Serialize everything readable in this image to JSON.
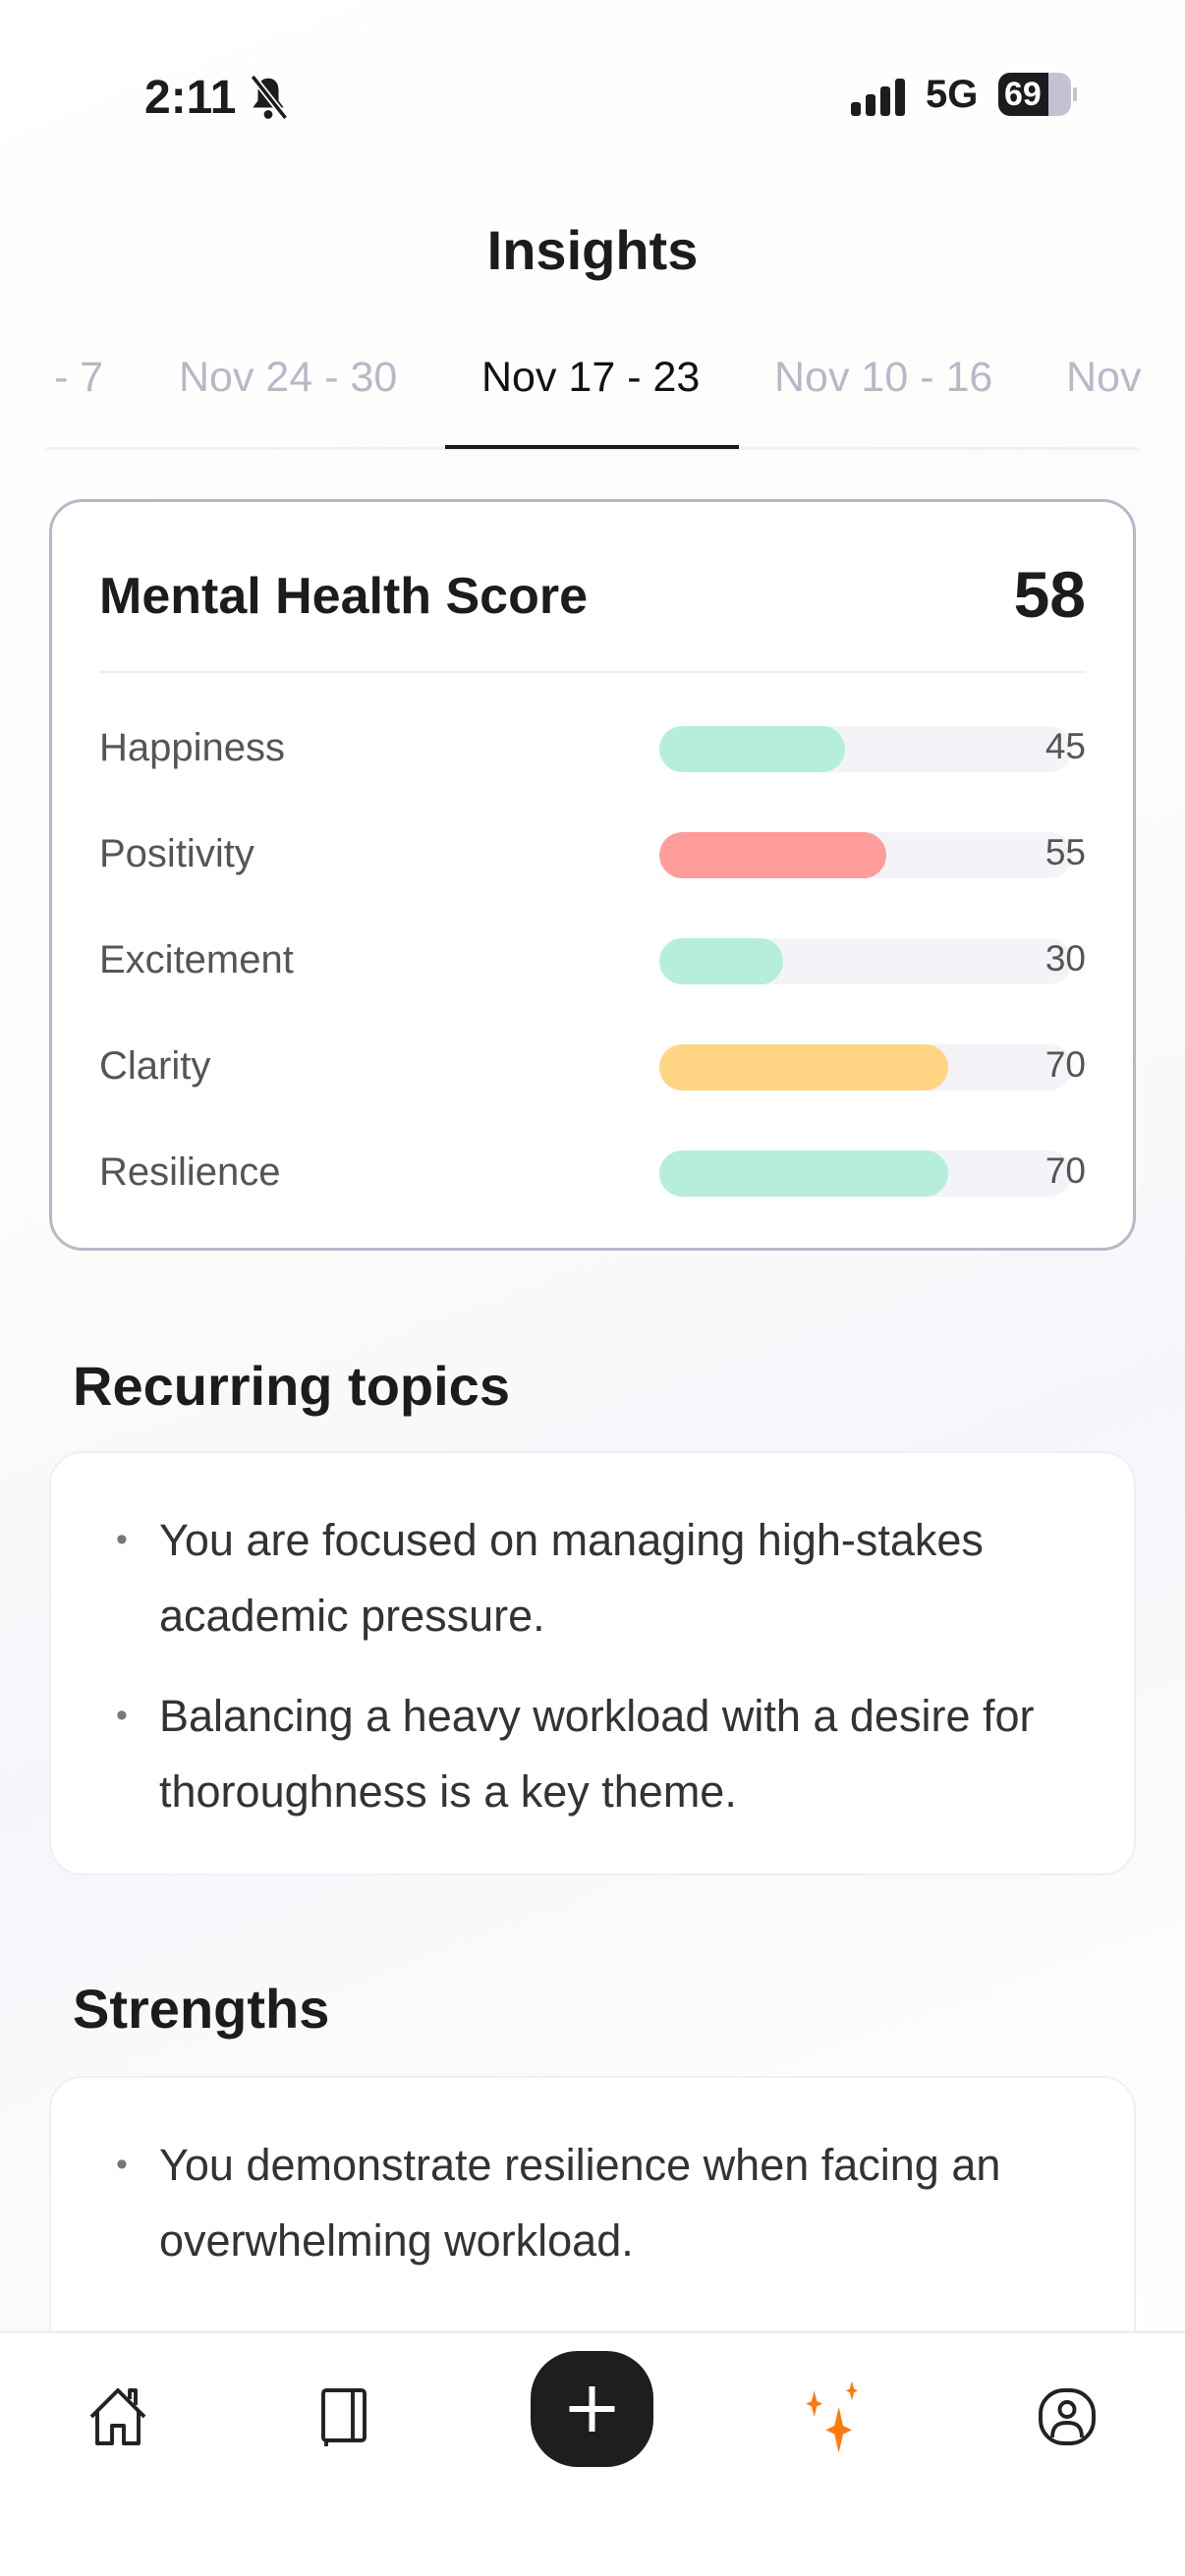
{
  "status_bar": {
    "time": "2:11",
    "network": "5G",
    "battery": "69",
    "icons": [
      "bell-slash-icon",
      "signal-icon",
      "battery-icon"
    ]
  },
  "header": {
    "title": "Insights"
  },
  "week_tabs": [
    {
      "label": "- 7"
    },
    {
      "label": "Nov 24 - 30"
    },
    {
      "label": "Nov 17 - 23",
      "active": true
    },
    {
      "label": "Nov 10 - 16"
    },
    {
      "label": "Nov"
    }
  ],
  "score_card": {
    "title": "Mental Health Score",
    "score": "58",
    "metrics": [
      {
        "label": "Happiness",
        "value": 45,
        "color": "#b6eedc"
      },
      {
        "label": "Positivity",
        "value": 55,
        "color": "#ff9d9b"
      },
      {
        "label": "Excitement",
        "value": 30,
        "color": "#b6eedc"
      },
      {
        "label": "Clarity",
        "value": 70,
        "color": "#ffd584"
      },
      {
        "label": "Resilience",
        "value": 70,
        "color": "#b6eedc"
      }
    ]
  },
  "recurring_topics": {
    "title": "Recurring topics",
    "items": [
      "You are focused on managing high-stakes academic pressure.",
      "Balancing a heavy workload with a desire for thoroughness is a key theme."
    ]
  },
  "strengths": {
    "title": "Strengths",
    "items": [
      "You demonstrate resilience when facing an overwhelming workload."
    ]
  },
  "bottom_nav": {
    "items": [
      "home-icon",
      "journal-icon",
      "plus-icon",
      "insights-sparkle-icon",
      "profile-icon"
    ],
    "active": "insights-sparkle-icon",
    "accent": "#ff7a0a"
  }
}
